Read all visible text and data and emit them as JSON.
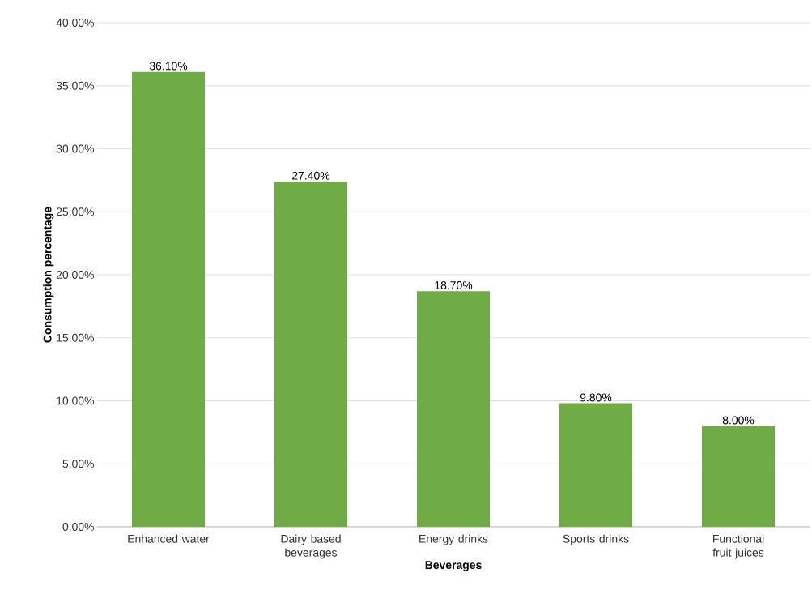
{
  "chart_data": {
    "type": "bar",
    "xlabel": "Beverages",
    "ylabel": "Consumption percentage",
    "categories": [
      "Enhanced water",
      "Dairy based beverages",
      "Energy drinks",
      "Sports drinks",
      "Functional fruit juices"
    ],
    "values": [
      36.1,
      27.4,
      18.7,
      9.8,
      8.0
    ],
    "value_labels": [
      "36.10%",
      "27.40%",
      "18.70%",
      "9.80%",
      "8.00%"
    ],
    "color": "#6fac46",
    "ylim": [
      0,
      40
    ],
    "yticks": [
      {
        "value": 0,
        "label": "0.00%"
      },
      {
        "value": 5,
        "label": "5.00%"
      },
      {
        "value": 10,
        "label": "10.00%"
      },
      {
        "value": 15,
        "label": "15.00%"
      },
      {
        "value": 20,
        "label": "20.00%"
      },
      {
        "value": 25,
        "label": "25.00%"
      },
      {
        "value": 30,
        "label": "30.00%"
      },
      {
        "value": 35,
        "label": "35.00%"
      },
      {
        "value": 40,
        "label": "40.00%"
      }
    ],
    "grid": "y"
  }
}
